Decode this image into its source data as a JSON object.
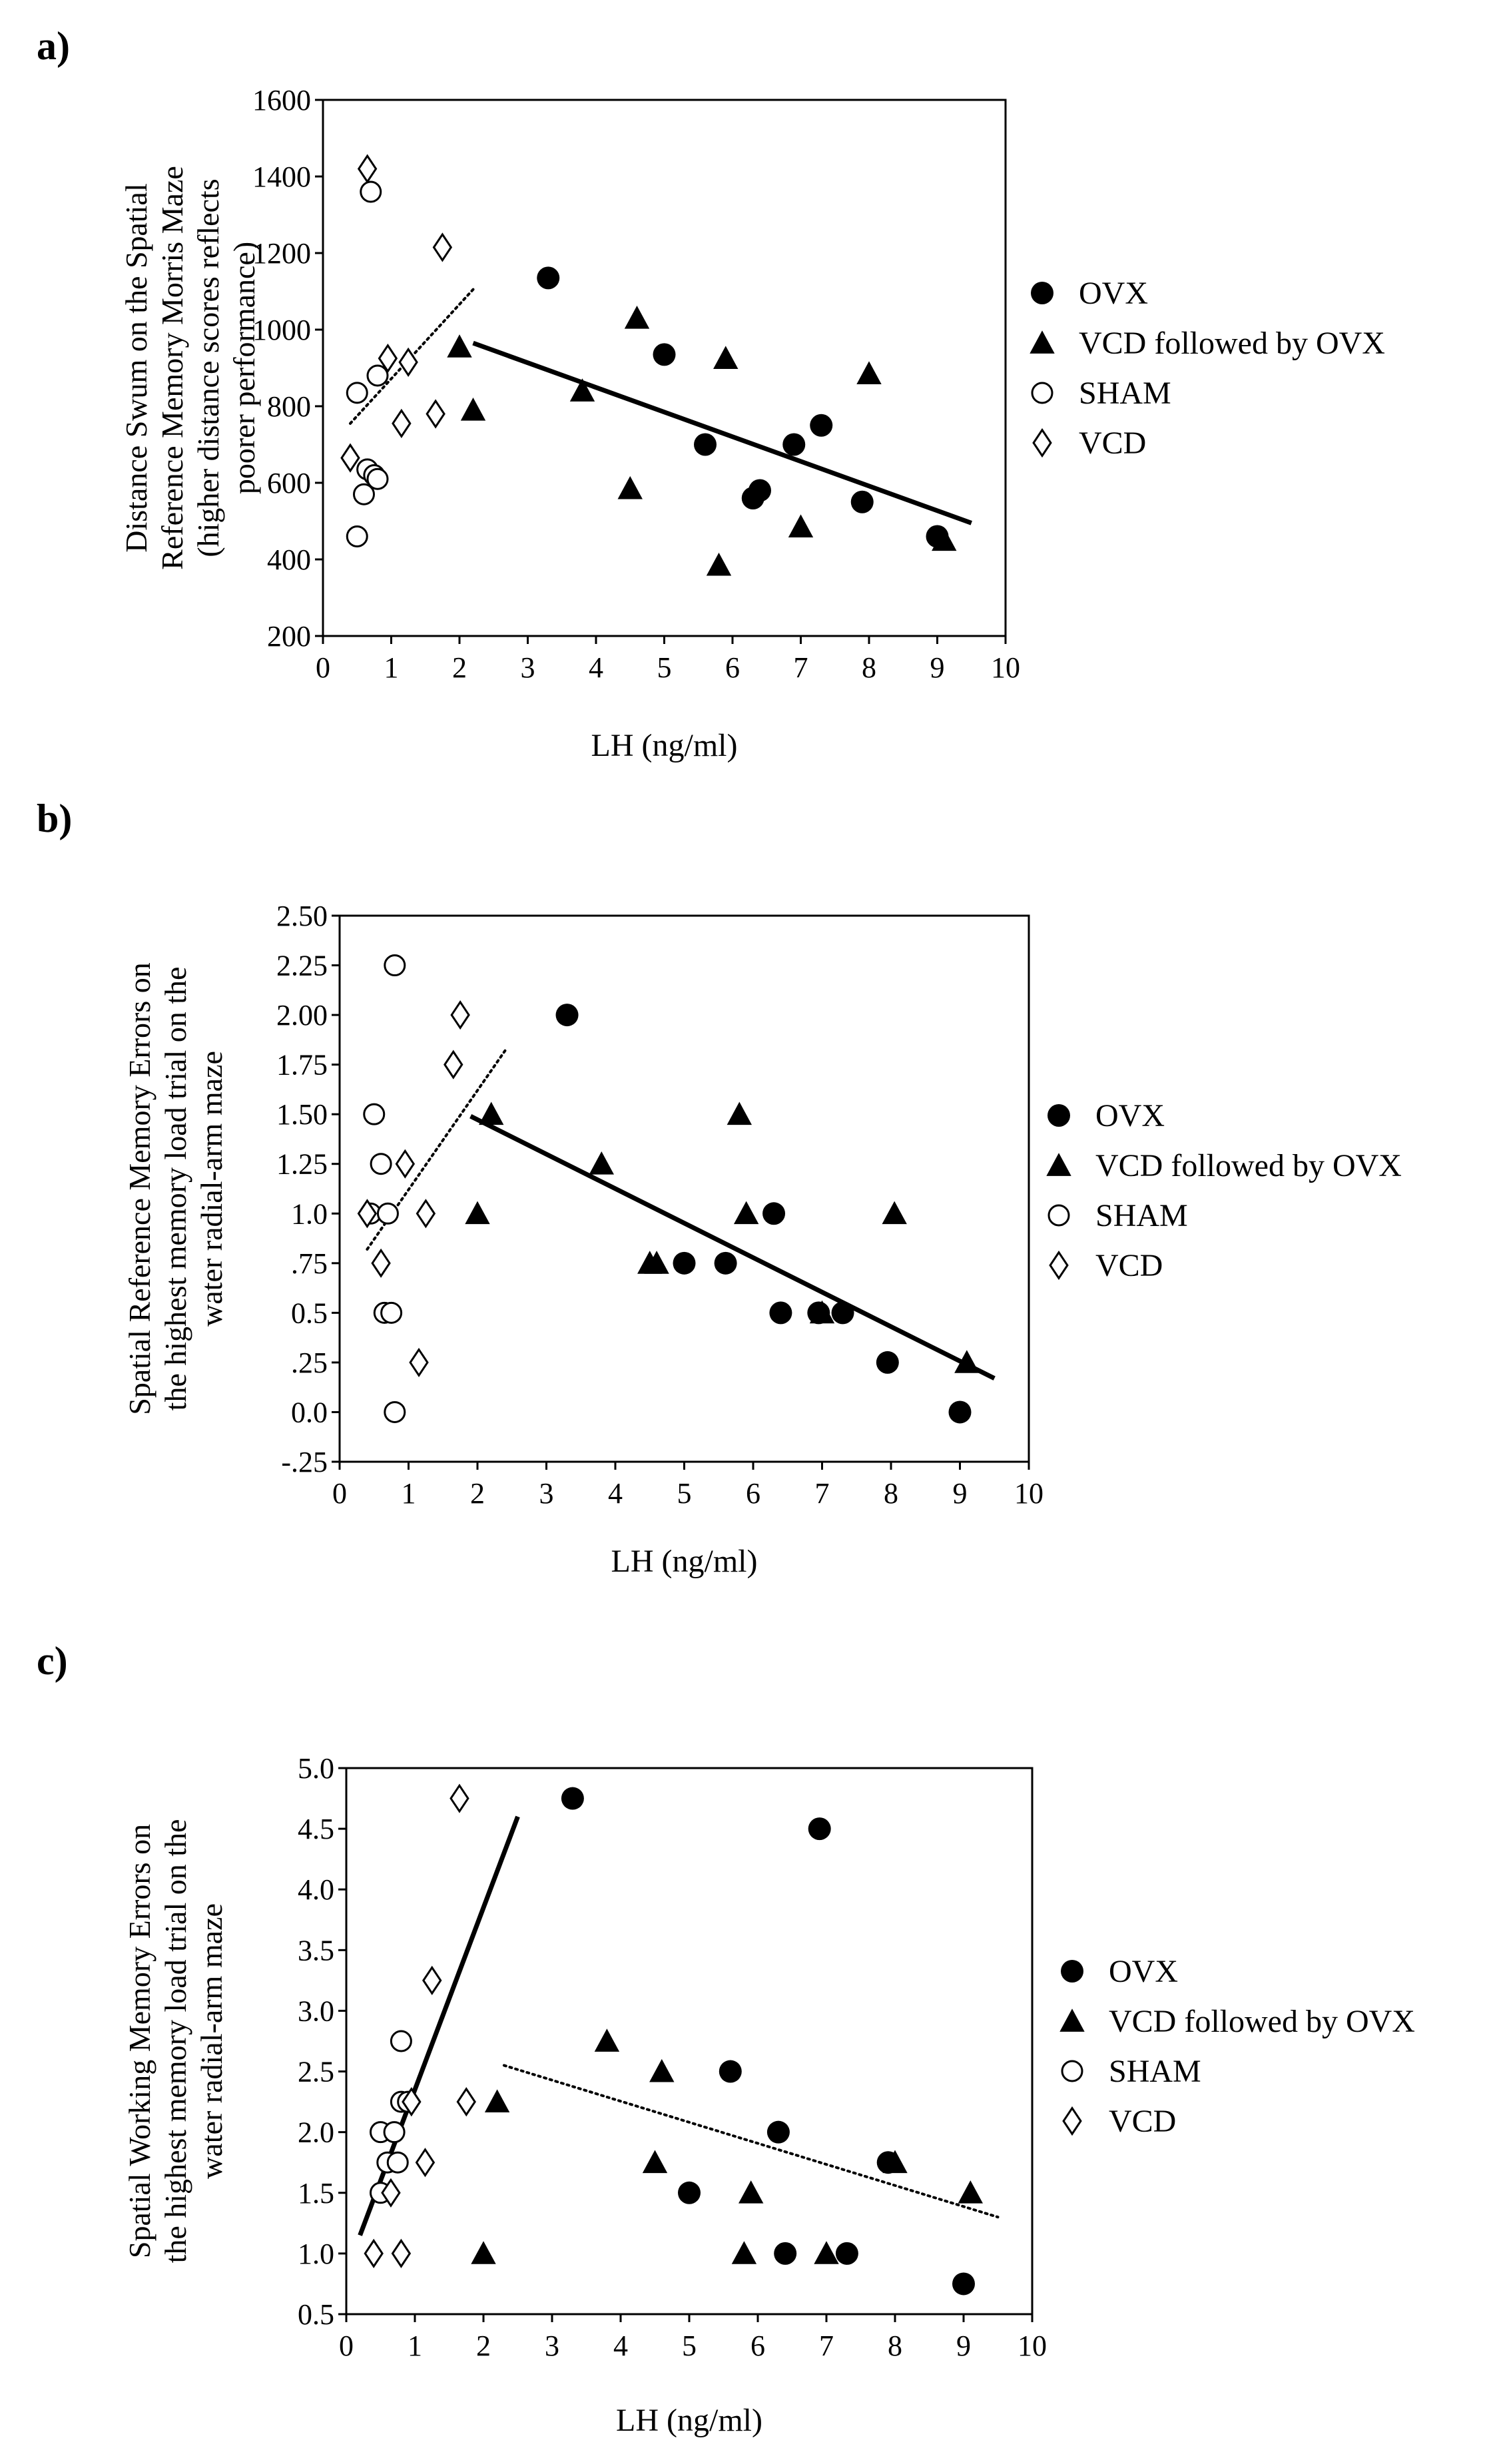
{
  "panels": [
    {
      "label": "a)"
    },
    {
      "label": "b)"
    },
    {
      "label": "c)"
    }
  ],
  "chart_data": [
    {
      "type": "scatter",
      "panel": "a)",
      "title": "",
      "xlabel": "LH    (ng/ml)",
      "ylabel": [
        "Distance Swum on the Spatial",
        "Reference Memory Morris Maze",
        "(higher distance scores reflects",
        "poorer performance)"
      ],
      "xlim": [
        0,
        10
      ],
      "ylim": [
        200,
        1600
      ],
      "xticks": [
        "0",
        "1",
        "2",
        "3",
        "4",
        "5",
        "6",
        "7",
        "8",
        "9",
        "10"
      ],
      "yticks": [
        "200",
        "400",
        "600",
        "800",
        "1000",
        "1200",
        "1400",
        "1600"
      ],
      "ytick_values": [
        200,
        400,
        600,
        800,
        1000,
        1200,
        1400,
        1600
      ],
      "legend_position": "right",
      "series": [
        {
          "name": "OVX",
          "marker": "filled-circle",
          "points": [
            [
              3.3,
              1135
            ],
            [
              5.0,
              935
            ],
            [
              5.6,
              700
            ],
            [
              6.3,
              560
            ],
            [
              6.4,
              580
            ],
            [
              6.9,
              700
            ],
            [
              7.3,
              750
            ],
            [
              7.9,
              550
            ],
            [
              9.0,
              460
            ]
          ]
        },
        {
          "name": "VCD followed by OVX",
          "marker": "filled-triangle",
          "points": [
            [
              2.0,
              955
            ],
            [
              2.2,
              790
            ],
            [
              3.8,
              840
            ],
            [
              4.5,
              585
            ],
            [
              4.6,
              1030
            ],
            [
              5.8,
              385
            ],
            [
              5.9,
              925
            ],
            [
              7.0,
              485
            ],
            [
              8.0,
              885
            ],
            [
              9.1,
              450
            ]
          ]
        },
        {
          "name": "SHAM",
          "marker": "open-circle",
          "points": [
            [
              0.5,
              835
            ],
            [
              0.5,
              460
            ],
            [
              0.6,
              570
            ],
            [
              0.65,
              635
            ],
            [
              0.7,
              1360
            ],
            [
              0.75,
              620
            ],
            [
              0.8,
              880
            ],
            [
              0.8,
              610
            ]
          ]
        },
        {
          "name": "VCD",
          "marker": "open-diamond",
          "points": [
            [
              0.4,
              665
            ],
            [
              0.65,
              1420
            ],
            [
              0.95,
              925
            ],
            [
              1.15,
              755
            ],
            [
              1.25,
              915
            ],
            [
              1.65,
              780
            ],
            [
              1.75,
              1215
            ]
          ]
        }
      ],
      "regression_lines": [
        {
          "style": "dotted",
          "from": [
            0.4,
            755
          ],
          "to": [
            2.2,
            1105
          ]
        },
        {
          "style": "solid",
          "from": [
            2.2,
            965
          ],
          "to": [
            9.5,
            495
          ]
        }
      ]
    },
    {
      "type": "scatter",
      "panel": "b)",
      "title": "",
      "xlabel": "LH    (ng/ml)",
      "ylabel": [
        "Spatial Reference Memory Errors on",
        "the highest memory load trial on the",
        "water radial-arm maze"
      ],
      "xlim": [
        0,
        10
      ],
      "ylim": [
        -0.25,
        2.5
      ],
      "xticks": [
        "0",
        "1",
        "2",
        "3",
        "4",
        "5",
        "6",
        "7",
        "8",
        "9",
        "10"
      ],
      "yticks": [
        "-.25",
        "0.0",
        ".25",
        "0.5",
        ".75",
        "1.0",
        "1.25",
        "1.50",
        "1.75",
        "2.00",
        "2.25",
        "2.50"
      ],
      "ytick_values": [
        -0.25,
        0,
        0.25,
        0.5,
        0.75,
        1.0,
        1.25,
        1.5,
        1.75,
        2.0,
        2.25,
        2.5
      ],
      "legend_position": "right",
      "series": [
        {
          "name": "OVX",
          "marker": "filled-circle",
          "points": [
            [
              3.3,
              2.0
            ],
            [
              5.0,
              0.75
            ],
            [
              5.6,
              0.75
            ],
            [
              6.3,
              1.0
            ],
            [
              6.4,
              0.5
            ],
            [
              6.95,
              0.5
            ],
            [
              7.3,
              0.5
            ],
            [
              7.95,
              0.25
            ],
            [
              9.0,
              0.0
            ]
          ]
        },
        {
          "name": "VCD followed by OVX",
          "marker": "filled-triangle",
          "points": [
            [
              2.0,
              1.0
            ],
            [
              2.2,
              1.5
            ],
            [
              3.8,
              1.25
            ],
            [
              4.5,
              0.75
            ],
            [
              4.6,
              0.75
            ],
            [
              5.8,
              1.5
            ],
            [
              5.9,
              1.0
            ],
            [
              7.0,
              0.5
            ],
            [
              8.05,
              1.0
            ],
            [
              9.1,
              0.25
            ]
          ]
        },
        {
          "name": "SHAM",
          "marker": "open-circle",
          "points": [
            [
              0.45,
              1.0
            ],
            [
              0.5,
              1.5
            ],
            [
              0.6,
              1.25
            ],
            [
              0.65,
              0.5
            ],
            [
              0.7,
              1.0
            ],
            [
              0.75,
              0.5
            ],
            [
              0.8,
              0.0
            ],
            [
              0.8,
              2.25
            ]
          ]
        },
        {
          "name": "VCD",
          "marker": "open-diamond",
          "points": [
            [
              0.4,
              1.0
            ],
            [
              0.6,
              0.75
            ],
            [
              0.95,
              1.25
            ],
            [
              1.15,
              0.25
            ],
            [
              1.25,
              1.0
            ],
            [
              1.65,
              1.75
            ],
            [
              1.75,
              2.0
            ]
          ]
        }
      ],
      "regression_lines": [
        {
          "style": "dotted",
          "from": [
            0.4,
            0.82
          ],
          "to": [
            2.4,
            1.82
          ]
        },
        {
          "style": "solid",
          "from": [
            1.9,
            1.49
          ],
          "to": [
            9.5,
            0.17
          ]
        }
      ]
    },
    {
      "type": "scatter",
      "panel": "c)",
      "title": "",
      "xlabel": "LH    (ng/ml)",
      "ylabel": [
        "Spatial Working Memory Errors on",
        "the highest memory load trial on the",
        "water radial-arm maze"
      ],
      "xlim": [
        0,
        10
      ],
      "ylim": [
        0.5,
        5.0
      ],
      "xticks": [
        "0",
        "1",
        "2",
        "3",
        "4",
        "5",
        "6",
        "7",
        "8",
        "9",
        "10"
      ],
      "yticks": [
        "0.5",
        "1.0",
        "1.5",
        "2.0",
        "2.5",
        "3.0",
        "3.5",
        "4.0",
        "4.5",
        "5.0"
      ],
      "ytick_values": [
        0.5,
        1.0,
        1.5,
        2.0,
        2.5,
        3.0,
        3.5,
        4.0,
        4.5,
        5.0
      ],
      "legend_position": "right",
      "series": [
        {
          "name": "OVX",
          "marker": "filled-circle",
          "points": [
            [
              3.3,
              4.75
            ],
            [
              5.0,
              1.5
            ],
            [
              5.6,
              2.5
            ],
            [
              6.3,
              2.0
            ],
            [
              6.4,
              1.0
            ],
            [
              6.9,
              4.5
            ],
            [
              7.3,
              1.0
            ],
            [
              7.9,
              1.75
            ],
            [
              9.0,
              0.75
            ]
          ]
        },
        {
          "name": "VCD followed by OVX",
          "marker": "filled-triangle",
          "points": [
            [
              2.0,
              1.0
            ],
            [
              2.2,
              2.25
            ],
            [
              3.8,
              2.75
            ],
            [
              4.5,
              1.75
            ],
            [
              4.6,
              2.5
            ],
            [
              5.8,
              1.0
            ],
            [
              5.9,
              1.5
            ],
            [
              7.0,
              1.0
            ],
            [
              8.0,
              1.75
            ],
            [
              9.1,
              1.5
            ]
          ]
        },
        {
          "name": "SHAM",
          "marker": "open-circle",
          "points": [
            [
              0.5,
              1.5
            ],
            [
              0.5,
              2.0
            ],
            [
              0.6,
              1.75
            ],
            [
              0.7,
              2.0
            ],
            [
              0.75,
              1.75
            ],
            [
              0.8,
              2.25
            ],
            [
              0.8,
              2.75
            ],
            [
              0.9,
              2.25
            ]
          ]
        },
        {
          "name": "VCD",
          "marker": "open-diamond",
          "points": [
            [
              0.4,
              1.0
            ],
            [
              0.65,
              1.5
            ],
            [
              0.8,
              1.0
            ],
            [
              0.95,
              2.25
            ],
            [
              1.15,
              1.75
            ],
            [
              1.25,
              3.25
            ],
            [
              1.65,
              4.75
            ],
            [
              1.75,
              2.25
            ]
          ]
        }
      ],
      "regression_lines": [
        {
          "style": "solid",
          "from": [
            0.2,
            1.15
          ],
          "to": [
            2.5,
            4.6
          ]
        },
        {
          "style": "dotted",
          "from": [
            2.3,
            2.55
          ],
          "to": [
            9.5,
            1.3
          ]
        }
      ]
    }
  ]
}
